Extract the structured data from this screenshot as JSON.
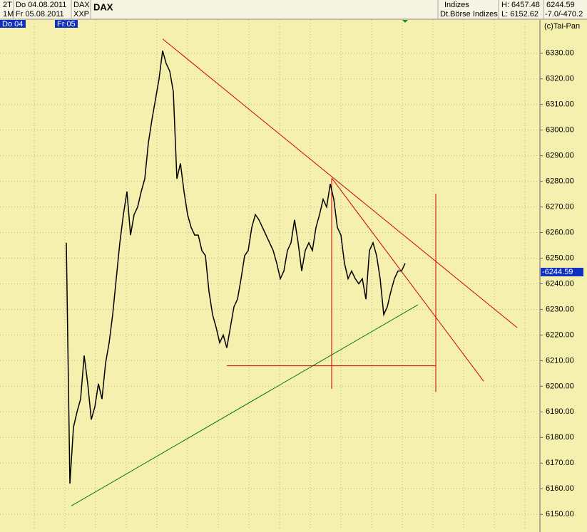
{
  "header": {
    "period_a": "2T",
    "date_a": "Do 04.08.2011",
    "symbol_a": "DAX",
    "period_b": "1M",
    "date_b": "Fr 05.08.2011",
    "symbol_b": "XXP",
    "title": "DAX",
    "group": "Indizes",
    "exchange": "Dt.Börse Indizes",
    "high": "H: 6457.48",
    "low": "L: 6152.62",
    "last": "6244.59",
    "change": "-7.0/-470.2",
    "copyright": "(c)Tai-Pan",
    "day_a": "Do 04",
    "day_b": "Fr 05"
  },
  "chart_data": {
    "type": "line",
    "color": "#000000",
    "values": [
      6256,
      6162,
      6184,
      6190,
      6195,
      6212,
      6201,
      6187,
      6192,
      6201,
      6195,
      6209,
      6217,
      6228,
      6242,
      6256,
      6267,
      6276,
      6259,
      6267,
      6270,
      6276,
      6281,
      6295,
      6304,
      6312,
      6320,
      6331,
      6326,
      6323,
      6315,
      6281,
      6287,
      6276,
      6267,
      6262,
      6259,
      6259,
      6253,
      6251,
      6237,
      6228,
      6223,
      6217,
      6220,
      6215,
      6223,
      6231,
      6234,
      6242,
      6251,
      6253,
      6262,
      6267,
      6265,
      6262,
      6259,
      6256,
      6253,
      6248,
      6242,
      6245,
      6253,
      6256,
      6265,
      6256,
      6245,
      6253,
      6256,
      6253,
      6262,
      6267,
      6273,
      6270,
      6279,
      6273,
      6262,
      6259,
      6248,
      6242,
      6245,
      6242,
      6240,
      6242,
      6234,
      6253,
      6256,
      6251,
      6242,
      6228,
      6231,
      6237,
      6242,
      6245,
      6245,
      6248
    ],
    "ylim": [
      6144.5,
      6343
    ],
    "yticks": [
      {
        "value": 6150,
        "label": "6150.00"
      },
      {
        "value": 6160,
        "label": "6160.00"
      },
      {
        "value": 6170,
        "label": "6170.00"
      },
      {
        "value": 6180,
        "label": "6180.00"
      },
      {
        "value": 6190,
        "label": "6190.00"
      },
      {
        "value": 6200,
        "label": "6200.00"
      },
      {
        "value": 6210,
        "label": "6210.00"
      },
      {
        "value": 6220,
        "label": "6220.00"
      },
      {
        "value": 6230,
        "label": "6230.00"
      },
      {
        "value": 6240,
        "label": "6240.00"
      },
      {
        "value": 6250,
        "label": "6250.00"
      },
      {
        "value": 6260,
        "label": "6260.00"
      },
      {
        "value": 6270,
        "label": "6270.00"
      },
      {
        "value": 6280,
        "label": "6280.00"
      },
      {
        "value": 6290,
        "label": "6290.00"
      },
      {
        "value": 6300,
        "label": "6300.00"
      },
      {
        "value": 6310,
        "label": "6310.00"
      },
      {
        "value": 6320,
        "label": "6320.00"
      },
      {
        "value": 6330,
        "label": "6330.00"
      }
    ],
    "grid": true,
    "last_price": {
      "value": 6244.59,
      "label": "-6244.59"
    },
    "lines": [
      {
        "color": "#cc0000",
        "x": [
          27,
          126.4
        ],
        "y": [
          6335.6,
          6222.9
        ]
      },
      {
        "color": "#cc0000",
        "x": [
          74.4,
          117
        ],
        "y": [
          6281.3,
          6202
        ]
      },
      {
        "color": "#008000",
        "x": [
          1.4,
          98.6
        ],
        "y": [
          6153.3,
          6231.8
        ]
      },
      {
        "color": "#cc0000",
        "x": [
          74.4,
          74.4
        ],
        "y": [
          6281,
          6199
        ]
      },
      {
        "color": "#cc0000",
        "x": [
          103.6,
          103.6
        ],
        "y": [
          6275.2,
          6197.8
        ]
      },
      {
        "color": "#cc0000",
        "x": [
          45,
          103.6
        ],
        "y": [
          6208,
          6208
        ]
      }
    ]
  }
}
